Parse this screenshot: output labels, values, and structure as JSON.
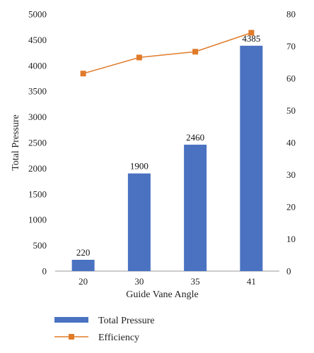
{
  "chart_data": {
    "type": "bar",
    "categories": [
      "20",
      "30",
      "35",
      "41"
    ],
    "xlabel": "Guide Vane Angle",
    "ylabel": "Total Pressure",
    "ylabel_right": "",
    "ylim": [
      0,
      5000
    ],
    "ylim_right": [
      0,
      80
    ],
    "y_ticks": [
      "0",
      "500",
      "1000",
      "1500",
      "2000",
      "2500",
      "3000",
      "3500",
      "4000",
      "4500",
      "5000"
    ],
    "y_ticks_right": [
      "0",
      "10",
      "20",
      "30",
      "40",
      "50",
      "60",
      "70",
      "80"
    ],
    "grid": false,
    "legend_position": "bottom",
    "series": [
      {
        "name": "Total Pressure",
        "type": "bar",
        "axis": "left",
        "color": "#4a72c1",
        "values": [
          220,
          1900,
          2460,
          4385
        ],
        "labels": [
          "220",
          "1900",
          "2460",
          "4385"
        ]
      },
      {
        "name": "Efficiency",
        "type": "line",
        "axis": "right",
        "color": "#e07b2a",
        "marker": "square",
        "values": [
          61.5,
          66.5,
          68.3,
          74.2
        ]
      }
    ]
  }
}
